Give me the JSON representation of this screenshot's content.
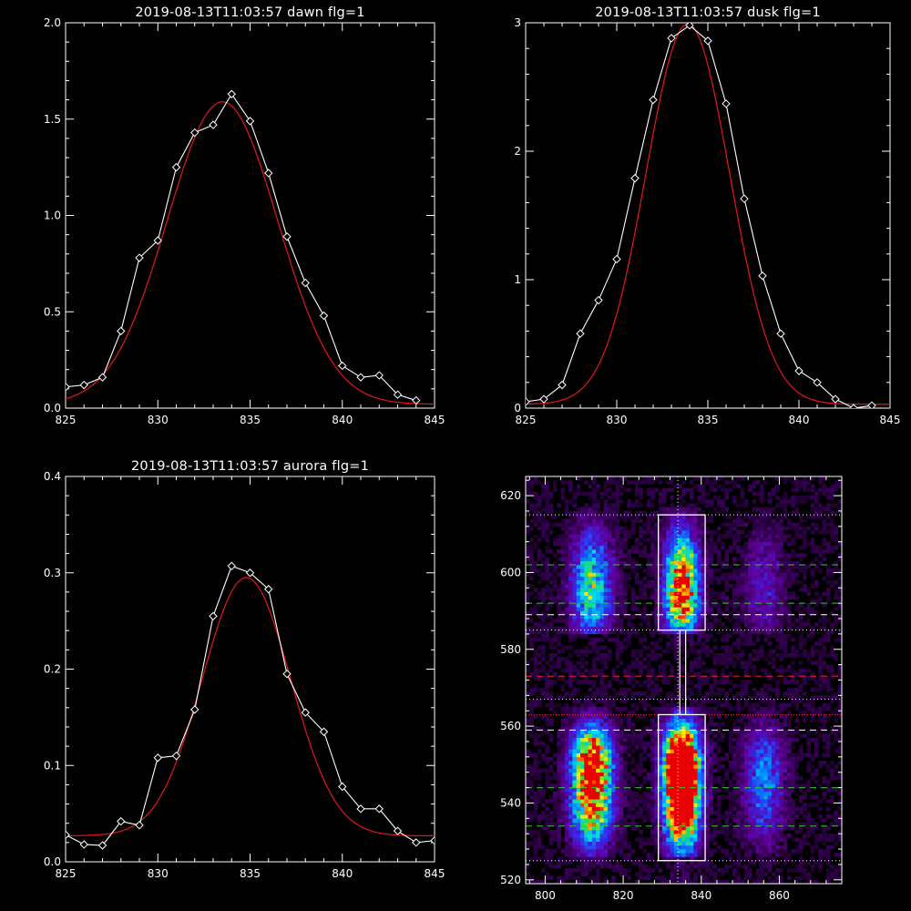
{
  "colors": {
    "background": "#000000",
    "axes": "#ffffff",
    "data_line": "#ffffff",
    "fit_line": "#e8141e"
  },
  "chart_data": [
    {
      "type": "line",
      "title": "2019-08-13T11:03:57 dawn flg=1",
      "xlim": [
        825,
        845
      ],
      "ylim": [
        0,
        2.0
      ],
      "xticks": [
        "825",
        "830",
        "835",
        "840",
        "845"
      ],
      "yticks": [
        "0.0",
        "0.5",
        "1.0",
        "1.5",
        "2.0"
      ],
      "x": [
        825,
        826,
        827,
        828,
        829,
        830,
        831,
        832,
        833,
        834,
        835,
        836,
        837,
        838,
        839,
        840,
        841,
        842,
        843,
        844
      ],
      "data": [
        0.11,
        0.12,
        0.16,
        0.4,
        0.78,
        0.87,
        1.25,
        1.43,
        1.47,
        1.63,
        1.49,
        1.22,
        0.89,
        0.65,
        0.48,
        0.22,
        0.16,
        0.17,
        0.07,
        0.04
      ],
      "fit": {
        "peak": 1.57,
        "center": 833.5,
        "sigma": 3.0,
        "base": 0.02
      }
    },
    {
      "type": "line",
      "title": "2019-08-13T11:03:57 dusk flg=1",
      "xlim": [
        825,
        845
      ],
      "ylim": [
        0,
        3.0
      ],
      "xticks": [
        "825",
        "830",
        "835",
        "840",
        "845"
      ],
      "yticks": [
        "0",
        "1",
        "2",
        "3"
      ],
      "x": [
        825,
        826,
        827,
        828,
        829,
        830,
        831,
        832,
        833,
        834,
        835,
        836,
        837,
        838,
        839,
        840,
        841,
        842,
        843,
        844
      ],
      "data": [
        0.05,
        0.07,
        0.18,
        0.58,
        0.84,
        1.16,
        1.79,
        2.4,
        2.88,
        2.98,
        2.86,
        2.37,
        1.63,
        1.03,
        0.58,
        0.29,
        0.2,
        0.07,
        0.0,
        0.02
      ],
      "fit": {
        "peak": 2.96,
        "center": 833.9,
        "sigma": 2.3,
        "base": 0.03
      }
    },
    {
      "type": "line",
      "title": "2019-08-13T11:03:57 aurora flg=1",
      "xlim": [
        825,
        845
      ],
      "ylim": [
        0,
        0.4
      ],
      "xticks": [
        "825",
        "830",
        "835",
        "840",
        "845"
      ],
      "yticks": [
        "0.0",
        "0.1",
        "0.2",
        "0.3",
        "0.4"
      ],
      "x": [
        825,
        826,
        827,
        828,
        829,
        830,
        831,
        832,
        833,
        834,
        835,
        836,
        837,
        838,
        839,
        840,
        841,
        842,
        843,
        844,
        845
      ],
      "data": [
        0.028,
        0.018,
        0.017,
        0.042,
        0.038,
        0.108,
        0.11,
        0.158,
        0.255,
        0.307,
        0.3,
        0.283,
        0.195,
        0.155,
        0.135,
        0.078,
        0.055,
        0.055,
        0.032,
        0.02,
        0.022
      ],
      "fit": {
        "peak": 0.268,
        "center": 834.8,
        "sigma": 2.4,
        "base": 0.027
      }
    },
    {
      "type": "heatmap",
      "title": "",
      "xlim": [
        795,
        876
      ],
      "ylim": [
        519,
        625
      ],
      "xticks": [
        "800",
        "820",
        "840",
        "860"
      ],
      "yticks": [
        "520",
        "540",
        "560",
        "580",
        "600",
        "620"
      ],
      "stripes": [
        {
          "x": 812,
          "width": 3.5,
          "amp": 1.0
        },
        {
          "x": 835,
          "width": 3.0,
          "amp": 1.6
        },
        {
          "x": 856,
          "width": 3.5,
          "amp": 0.35
        }
      ],
      "boxes": [
        {
          "x": [
            829,
            841
          ],
          "y": [
            585,
            615
          ]
        },
        {
          "x": [
            829,
            841
          ],
          "y": [
            525,
            563
          ]
        }
      ],
      "connector_x": [
        834.5,
        836
      ],
      "center_line_x": 834,
      "white_dotted_y": [
        615,
        585,
        567,
        525
      ],
      "green_dashed_y": [
        602,
        592,
        544,
        534
      ],
      "white_dashed_y": [
        589,
        559
      ],
      "red_dashed_y": 573,
      "red_dotted_y": 563
    }
  ]
}
